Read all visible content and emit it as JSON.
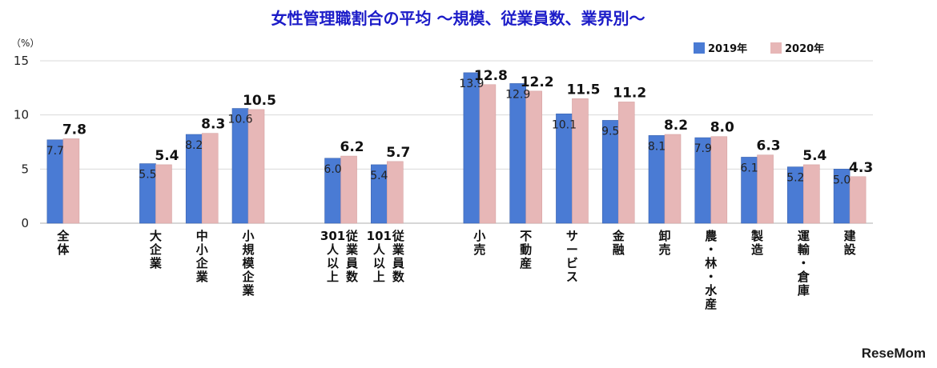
{
  "chart_data": {
    "type": "bar",
    "title": "女性管理職割合の平均 〜規模、従業員数、業界別〜",
    "unit_label": "（%）",
    "ylim": [
      0,
      15
    ],
    "yticks": [
      0,
      5,
      10,
      15
    ],
    "grid": true,
    "legend_position": "top-right",
    "categories": [
      {
        "lines": [
          "全",
          "体"
        ]
      },
      {
        "lines": [
          "大",
          "企",
          "業"
        ]
      },
      {
        "lines": [
          "中",
          "小",
          "企",
          "業"
        ]
      },
      {
        "lines": [
          "小",
          "規",
          "模",
          "企",
          "業"
        ]
      },
      {
        "lines": [
          "301",
          "人",
          "以",
          "上"
        ],
        "prefix": [
          "従",
          "業",
          "員",
          "数"
        ]
      },
      {
        "lines": [
          "101",
          "人",
          "以",
          "上"
        ],
        "prefix": [
          "従",
          "業",
          "員",
          "数"
        ]
      },
      {
        "lines": [
          "小",
          "売"
        ]
      },
      {
        "lines": [
          "不",
          "動",
          "産"
        ]
      },
      {
        "lines": [
          "サ",
          "ー",
          "ビ",
          "ス"
        ]
      },
      {
        "lines": [
          "金",
          "融"
        ]
      },
      {
        "lines": [
          "卸",
          "売"
        ]
      },
      {
        "lines": [
          "農",
          "・",
          "林",
          "・",
          "水",
          "産"
        ]
      },
      {
        "lines": [
          "製",
          "造"
        ]
      },
      {
        "lines": [
          "運",
          "輸",
          "・",
          "倉",
          "庫"
        ]
      },
      {
        "lines": [
          "建",
          "設"
        ]
      }
    ],
    "groups": [
      [
        0
      ],
      [
        1,
        2,
        3
      ],
      [
        4,
        5
      ],
      [
        6,
        7,
        8,
        9,
        10,
        11,
        12,
        13,
        14
      ]
    ],
    "series": [
      {
        "name": "2019年",
        "color": "#4a7bd4",
        "values": [
          7.7,
          5.5,
          8.2,
          10.6,
          6.0,
          5.4,
          13.9,
          12.9,
          10.1,
          9.5,
          8.1,
          7.9,
          6.1,
          5.2,
          5.0
        ],
        "labels": [
          "7.7",
          "5.5",
          "8.2",
          "10.6",
          "6.0",
          "5.4",
          "13.9",
          "12.9",
          "10.1",
          "9.5",
          "8.1",
          "7.9",
          "6.1",
          "5.2",
          "5.0"
        ]
      },
      {
        "name": "2020年",
        "color": "#e7b7b7",
        "values": [
          7.8,
          5.4,
          8.3,
          10.5,
          6.2,
          5.7,
          12.8,
          12.2,
          11.5,
          11.2,
          8.2,
          8.0,
          6.3,
          5.4,
          4.3
        ],
        "labels": [
          "7.8",
          "5.4",
          "8.3",
          "10.5",
          "6.2",
          "5.7",
          "12.8",
          "12.2",
          "11.5",
          "11.2",
          "8.2",
          "8.0",
          "6.3",
          "5.4",
          "4.3"
        ]
      }
    ],
    "colors": {
      "title": "#1c1cc8",
      "grid": "#d9d9d9",
      "axis": "#bfbfbf"
    }
  },
  "watermark": "ReseMom"
}
